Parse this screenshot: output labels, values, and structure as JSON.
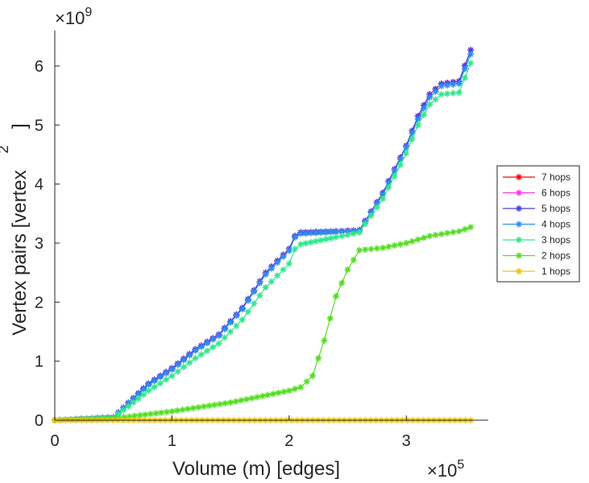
{
  "chart_data": {
    "type": "line",
    "title": "",
    "xlabel": "Volume (m) [edges]",
    "ylabel": "Vertex pairs [vertex",
    "ylabel_superscript": "2",
    "ylabel_close": "]",
    "x_exponent": {
      "base": "×10",
      "power": "5"
    },
    "y_exponent": {
      "base": "×10",
      "power": "9"
    },
    "x_units": "×1e5 edges",
    "y_units": "×1e9 vertex pairs",
    "xlim": [
      0,
      3.7
    ],
    "ylim": [
      0,
      6.6
    ],
    "x_ticks": [
      0,
      1,
      2,
      3
    ],
    "x_tick_labels": [
      "0",
      "1",
      "2",
      "3"
    ],
    "y_ticks": [
      0,
      1,
      2,
      3,
      4,
      5,
      6
    ],
    "y_tick_labels": [
      "0",
      "1",
      "2",
      "3",
      "4",
      "5",
      "6"
    ],
    "legend_position": "right",
    "series": [
      {
        "name": "7 hops",
        "color": "#ff0000",
        "points": [
          [
            0,
            0
          ],
          [
            0.5,
            0.05
          ],
          [
            0.8,
            0.62
          ],
          [
            1.0,
            0.88
          ],
          [
            1.2,
            1.2
          ],
          [
            1.4,
            1.45
          ],
          [
            1.6,
            1.9
          ],
          [
            1.8,
            2.5
          ],
          [
            2.0,
            2.9
          ],
          [
            2.05,
            3.12
          ],
          [
            2.1,
            3.18
          ],
          [
            2.4,
            3.2
          ],
          [
            2.6,
            3.22
          ],
          [
            2.8,
            3.85
          ],
          [
            3.0,
            4.65
          ],
          [
            3.1,
            5.15
          ],
          [
            3.2,
            5.52
          ],
          [
            3.3,
            5.7
          ],
          [
            3.45,
            5.74
          ],
          [
            3.55,
            6.27
          ]
        ]
      },
      {
        "name": "6 hops",
        "color": "#ff33dd",
        "points": [
          [
            0,
            0
          ],
          [
            0.5,
            0.05
          ],
          [
            0.8,
            0.62
          ],
          [
            1.0,
            0.88
          ],
          [
            1.2,
            1.2
          ],
          [
            1.4,
            1.45
          ],
          [
            1.6,
            1.9
          ],
          [
            1.8,
            2.5
          ],
          [
            2.0,
            2.9
          ],
          [
            2.05,
            3.12
          ],
          [
            2.1,
            3.18
          ],
          [
            2.4,
            3.2
          ],
          [
            2.6,
            3.22
          ],
          [
            2.8,
            3.85
          ],
          [
            3.0,
            4.65
          ],
          [
            3.1,
            5.15
          ],
          [
            3.2,
            5.52
          ],
          [
            3.3,
            5.7
          ],
          [
            3.45,
            5.74
          ],
          [
            3.55,
            6.27
          ]
        ]
      },
      {
        "name": "5 hops",
        "color": "#4a3fdc",
        "points": [
          [
            0,
            0
          ],
          [
            0.5,
            0.05
          ],
          [
            0.8,
            0.62
          ],
          [
            1.0,
            0.88
          ],
          [
            1.2,
            1.2
          ],
          [
            1.4,
            1.45
          ],
          [
            1.6,
            1.9
          ],
          [
            1.8,
            2.5
          ],
          [
            2.0,
            2.9
          ],
          [
            2.05,
            3.12
          ],
          [
            2.1,
            3.18
          ],
          [
            2.4,
            3.2
          ],
          [
            2.6,
            3.22
          ],
          [
            2.8,
            3.85
          ],
          [
            3.0,
            4.65
          ],
          [
            3.1,
            5.15
          ],
          [
            3.2,
            5.52
          ],
          [
            3.3,
            5.7
          ],
          [
            3.45,
            5.74
          ],
          [
            3.55,
            6.27
          ]
        ]
      },
      {
        "name": "4 hops",
        "color": "#2a8ff0",
        "points": [
          [
            0,
            0
          ],
          [
            0.5,
            0.05
          ],
          [
            0.8,
            0.6
          ],
          [
            1.0,
            0.86
          ],
          [
            1.2,
            1.18
          ],
          [
            1.4,
            1.43
          ],
          [
            1.6,
            1.88
          ],
          [
            1.8,
            2.47
          ],
          [
            2.0,
            2.87
          ],
          [
            2.05,
            3.1
          ],
          [
            2.1,
            3.16
          ],
          [
            2.4,
            3.19
          ],
          [
            2.6,
            3.21
          ],
          [
            2.8,
            3.82
          ],
          [
            3.0,
            4.62
          ],
          [
            3.1,
            5.1
          ],
          [
            3.2,
            5.47
          ],
          [
            3.3,
            5.66
          ],
          [
            3.45,
            5.7
          ],
          [
            3.55,
            6.2
          ]
        ]
      },
      {
        "name": "3 hops",
        "color": "#2ee88c",
        "points": [
          [
            0,
            0
          ],
          [
            0.5,
            0.04
          ],
          [
            0.8,
            0.5
          ],
          [
            1.0,
            0.75
          ],
          [
            1.2,
            1.05
          ],
          [
            1.4,
            1.3
          ],
          [
            1.6,
            1.7
          ],
          [
            1.8,
            2.25
          ],
          [
            2.0,
            2.65
          ],
          [
            2.05,
            2.9
          ],
          [
            2.1,
            2.98
          ],
          [
            2.4,
            3.1
          ],
          [
            2.6,
            3.18
          ],
          [
            2.8,
            3.75
          ],
          [
            3.0,
            4.52
          ],
          [
            3.1,
            5.0
          ],
          [
            3.2,
            5.35
          ],
          [
            3.3,
            5.52
          ],
          [
            3.45,
            5.55
          ],
          [
            3.55,
            6.05
          ]
        ]
      },
      {
        "name": "2 hops",
        "color": "#55dd22",
        "points": [
          [
            0,
            0
          ],
          [
            0.5,
            0.03
          ],
          [
            1.0,
            0.15
          ],
          [
            1.5,
            0.3
          ],
          [
            2.0,
            0.5
          ],
          [
            2.1,
            0.56
          ],
          [
            2.2,
            0.75
          ],
          [
            2.3,
            1.35
          ],
          [
            2.4,
            2.1
          ],
          [
            2.5,
            2.55
          ],
          [
            2.6,
            2.88
          ],
          [
            2.8,
            2.92
          ],
          [
            3.0,
            3.0
          ],
          [
            3.2,
            3.12
          ],
          [
            3.35,
            3.17
          ],
          [
            3.45,
            3.2
          ],
          [
            3.55,
            3.27
          ]
        ]
      },
      {
        "name": "1 hops",
        "color": "#f2c200",
        "points": [
          [
            0,
            0
          ],
          [
            3.55,
            0
          ]
        ]
      }
    ]
  }
}
